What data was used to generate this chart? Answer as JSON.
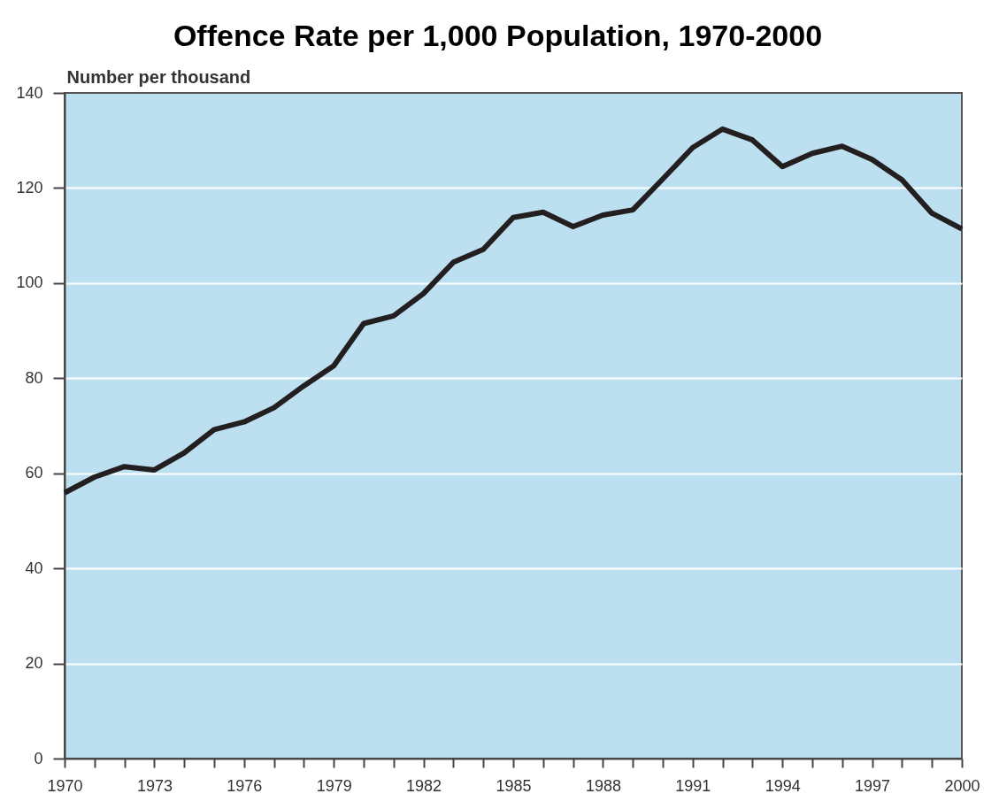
{
  "chart_data": {
    "type": "line",
    "title": "Offence Rate per 1,000 Population, 1970-2000",
    "ylabel": "Number per thousand",
    "x": [
      1970,
      1971,
      1972,
      1973,
      1974,
      1975,
      1976,
      1977,
      1978,
      1979,
      1980,
      1981,
      1982,
      1983,
      1984,
      1985,
      1986,
      1987,
      1988,
      1989,
      1990,
      1991,
      1992,
      1993,
      1994,
      1995,
      1996,
      1997,
      1998,
      1999,
      2000
    ],
    "series": [
      {
        "color": "#231f20",
        "values": [
          55.9,
          59.2,
          61.4,
          60.7,
          64.3,
          69.2,
          70.8,
          73.8,
          78.4,
          82.6,
          91.5,
          93.1,
          97.8,
          104.4,
          107.1,
          113.8,
          114.9,
          111.9,
          114.3,
          115.4,
          121.9,
          128.5,
          132.4,
          130.1,
          124.5,
          127.3,
          128.8,
          126.0,
          121.7,
          114.7,
          111.4
        ]
      }
    ],
    "xlim": [
      1970,
      2000
    ],
    "xticks": [
      1970,
      {
        "value": 1971,
        "label": null
      },
      {
        "value": 1972,
        "label": null
      },
      1973,
      {
        "value": 1974,
        "label": null
      },
      {
        "value": 1975,
        "label": null
      },
      1976,
      {
        "value": 1977,
        "label": null
      },
      {
        "value": 1978,
        "label": null
      },
      1979,
      {
        "value": 1980,
        "label": null
      },
      {
        "value": 1981,
        "label": null
      },
      1982,
      {
        "value": 1983,
        "label": null
      },
      {
        "value": 1984,
        "label": null
      },
      1985,
      {
        "value": 1986,
        "label": null
      },
      {
        "value": 1987,
        "label": null
      },
      1988,
      {
        "value": 1989,
        "label": null
      },
      {
        "value": 1990,
        "label": null
      },
      1991,
      {
        "value": 1992,
        "label": null
      },
      {
        "value": 1993,
        "label": null
      },
      1994,
      {
        "value": 1995,
        "label": null
      },
      {
        "value": 1996,
        "label": null
      },
      1997,
      {
        "value": 1998,
        "label": null
      },
      {
        "value": 1999,
        "label": null
      },
      2000
    ],
    "ylim": [
      0,
      140
    ],
    "yticks": [
      0,
      20,
      40,
      60,
      80,
      100,
      120,
      140
    ],
    "grid": "y",
    "line_style": "solid"
  }
}
